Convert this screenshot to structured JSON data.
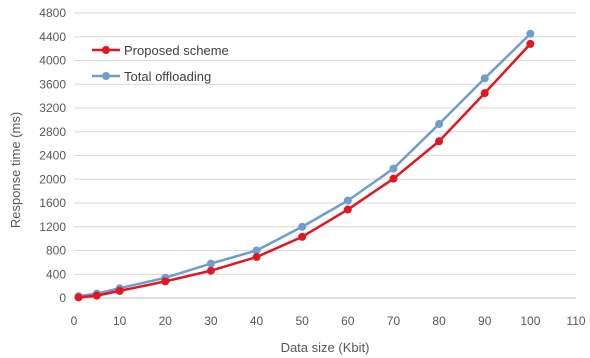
{
  "chart_data": {
    "type": "line",
    "title": "",
    "xlabel": "Data size (Kbit)",
    "ylabel": "Response time (ms)",
    "xlim": [
      0,
      110
    ],
    "ylim": [
      0,
      4800
    ],
    "xticks": [
      0,
      10,
      20,
      30,
      40,
      50,
      60,
      70,
      80,
      90,
      100,
      110
    ],
    "yticks": [
      0,
      400,
      800,
      1200,
      1600,
      2000,
      2400,
      2800,
      3200,
      3600,
      4000,
      4400,
      4800
    ],
    "grid": "horizontal",
    "legend_position": "top-left",
    "series": [
      {
        "name": "Proposed scheme",
        "color": "#e3151e",
        "x": [
          1,
          5,
          10,
          20,
          30,
          40,
          50,
          60,
          70,
          80,
          90,
          100
        ],
        "y": [
          10,
          40,
          120,
          280,
          460,
          690,
          1030,
          1490,
          2010,
          2640,
          3450,
          4280
        ]
      },
      {
        "name": "Total offloading",
        "color": "#6e9ece",
        "x": [
          1,
          5,
          10,
          20,
          30,
          40,
          50,
          60,
          70,
          80,
          90,
          100
        ],
        "y": [
          30,
          75,
          165,
          340,
          580,
          800,
          1200,
          1640,
          2180,
          2930,
          3700,
          4450
        ]
      }
    ]
  }
}
